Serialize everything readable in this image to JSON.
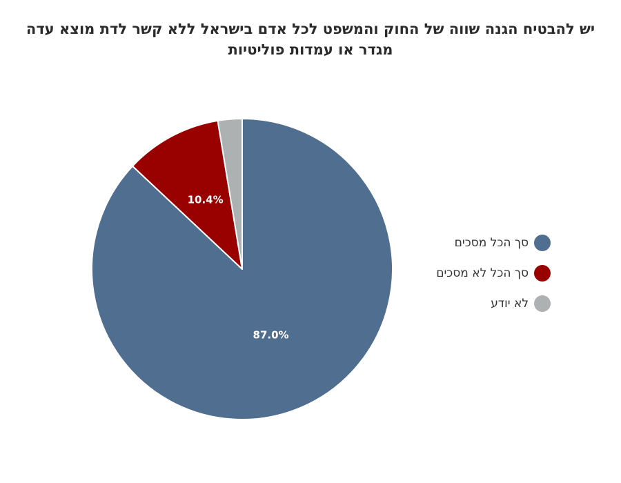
{
  "chart_data": {
    "type": "pie",
    "title_lines": [
      "יש להבטיח הגנה שווה של החוק והמשפט לכל אדם בישראל ללא קשר לדת מוצא עדה",
      "מגדר או עמדות פוליטיות"
    ],
    "slices": [
      {
        "label": "סך הכל מסכים",
        "value": 87.0,
        "color": "#506e8f",
        "data_label": "87.0%"
      },
      {
        "label": "סך הכל לא מסכים",
        "value": 10.4,
        "color": "#990000",
        "data_label": "10.4%"
      },
      {
        "label": "לא יודע",
        "value": 2.6,
        "color": "#adb1b2",
        "data_label": ""
      }
    ],
    "start_angle": "12 o'clock",
    "direction": "clockwise",
    "legend_position": "right"
  }
}
